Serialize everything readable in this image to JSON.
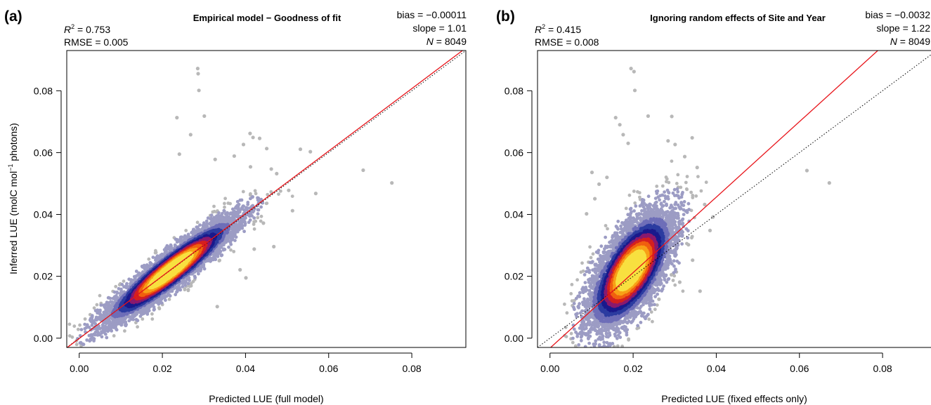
{
  "figure": {
    "colors": {
      "identity_line": "#000000",
      "fit_line": "#e8141a",
      "low_density_points": "#b8b8b8",
      "density_ramp": [
        "#b8b8c4",
        "#9c9cc4",
        "#6e6eb8",
        "#2c3ca0",
        "#1a1a8c",
        "#8a1a6e",
        "#d42020",
        "#f06010",
        "#f8a018",
        "#f8e040"
      ]
    }
  },
  "chart_data": [
    {
      "type": "scatter",
      "panel_label": "(a)",
      "title": "Empirical model − Goodness of fit",
      "xlabel": "Predicted LUE (full model)",
      "ylabel_main": "Inferred LUE (molC mol",
      "ylabel_sup": "−1",
      "ylabel_end": " photons)",
      "xlim": [
        -0.003,
        0.093
      ],
      "ylim": [
        -0.003,
        0.093
      ],
      "xticks": [
        0.0,
        0.02,
        0.04,
        0.06,
        0.08
      ],
      "yticks": [
        0.0,
        0.02,
        0.04,
        0.06,
        0.08
      ],
      "xtick_labels": [
        "0.00",
        "0.02",
        "0.04",
        "0.06",
        "0.08"
      ],
      "ytick_labels": [
        "0.00",
        "0.02",
        "0.04",
        "0.06",
        "0.08"
      ],
      "grid": false,
      "stats": {
        "r2_label": "R",
        "r2_sup": "2",
        "r2_value": " = 0.753",
        "rmse": "RMSE = 0.005",
        "bias": "bias = −0.00011",
        "slope": "slope = 1.01",
        "n_label": "N",
        "n_value": " = 8049"
      },
      "identity_line": {
        "slope": 1,
        "intercept": 0
      },
      "fit_line": {
        "slope": 1.01,
        "intercept": -0.00011
      },
      "cloud": {
        "center": [
          0.022,
          0.0219
        ],
        "spread_x": 0.0075,
        "slope": 1.0,
        "residual_sd": 0.003,
        "n_points": 8049
      },
      "outliers": [
        [
          0.0285,
          0.0872
        ],
        [
          0.0286,
          0.0855
        ],
        [
          0.0288,
          0.0801
        ],
        [
          0.0301,
          0.0718
        ],
        [
          0.0235,
          0.0713
        ],
        [
          0.0268,
          0.0658
        ],
        [
          0.0241,
          0.0595
        ],
        [
          0.0327,
          0.0578
        ],
        [
          0.0373,
          0.0589
        ],
        [
          0.0395,
          0.0626
        ],
        [
          0.0411,
          0.0662
        ],
        [
          0.0418,
          0.0649
        ],
        [
          0.0434,
          0.0646
        ],
        [
          0.0451,
          0.0613
        ],
        [
          0.0462,
          0.0547
        ],
        [
          0.0532,
          0.0611
        ],
        [
          0.0556,
          0.0603
        ],
        [
          0.0569,
          0.0468
        ],
        [
          0.0475,
          0.0532
        ],
        [
          0.0504,
          0.0478
        ],
        [
          0.0412,
          0.0554
        ],
        [
          0.0683,
          0.0543
        ],
        [
          0.0752,
          0.0502
        ],
        [
          0.0443,
          0.0372
        ],
        [
          0.0401,
          0.0195
        ],
        [
          0.0332,
          0.0102
        ],
        [
          0.0387,
          0.0221
        ],
        [
          0.0421,
          0.0288
        ],
        [
          0.0468,
          0.0296
        ],
        [
          0.0513,
          0.0412
        ]
      ]
    },
    {
      "type": "scatter",
      "panel_label": "(b)",
      "title": "Ignoring random effects of Site and Year",
      "xlabel": "Predicted LUE (fixed effects only)",
      "xlim": [
        -0.003,
        0.093
      ],
      "ylim": [
        -0.003,
        0.093
      ],
      "xticks": [
        0.0,
        0.02,
        0.04,
        0.06,
        0.08
      ],
      "yticks": [
        0.0,
        0.02,
        0.04,
        0.06,
        0.08
      ],
      "xtick_labels": [
        "0.00",
        "0.02",
        "0.04",
        "0.06",
        "0.08"
      ],
      "ytick_labels": [
        "0.00",
        "0.02",
        "0.04",
        "0.06",
        "0.08"
      ],
      "grid": false,
      "stats": {
        "r2_label": "R",
        "r2_sup": "2",
        "r2_value": " = 0.415",
        "rmse": "RMSE = 0.008",
        "bias": "bias = −0.0032",
        "slope": "slope = 1.22",
        "n_label": "N",
        "n_value": " = 8049"
      },
      "identity_line": {
        "slope": 1,
        "intercept": 0
      },
      "fit_line": {
        "slope": 1.22,
        "intercept": -0.0032
      },
      "cloud": {
        "center": [
          0.0195,
          0.0219
        ],
        "spread_x": 0.0048,
        "slope": 1.22,
        "residual_sd": 0.0068,
        "n_points": 8049
      },
      "outliers": [
        [
          0.0195,
          0.0872
        ],
        [
          0.0202,
          0.0862
        ],
        [
          0.0204,
          0.0801
        ],
        [
          0.0236,
          0.0718
        ],
        [
          0.0158,
          0.0713
        ],
        [
          0.0168,
          0.069
        ],
        [
          0.0176,
          0.0658
        ],
        [
          0.0188,
          0.063
        ],
        [
          0.0284,
          0.0638
        ],
        [
          0.0293,
          0.0717
        ],
        [
          0.0301,
          0.0626
        ],
        [
          0.0342,
          0.0648
        ],
        [
          0.0324,
          0.0587
        ],
        [
          0.0354,
          0.0552
        ],
        [
          0.0372,
          0.0432
        ],
        [
          0.0392,
          0.0392
        ],
        [
          0.0343,
          0.0252
        ],
        [
          0.0361,
          0.0152
        ],
        [
          0.0312,
          0.0181
        ],
        [
          0.0618,
          0.0542
        ],
        [
          0.0672,
          0.0502
        ],
        [
          0.0101,
          0.0536
        ],
        [
          0.0118,
          0.0498
        ],
        [
          0.0137,
          0.052
        ],
        [
          0.0292,
          0.0205
        ],
        [
          0.0262,
          0.0126
        ],
        [
          0.0333,
          0.0302
        ],
        [
          0.0385,
          0.0348
        ],
        [
          0.0088,
          0.0402
        ],
        [
          0.0108,
          0.0451
        ]
      ]
    }
  ]
}
